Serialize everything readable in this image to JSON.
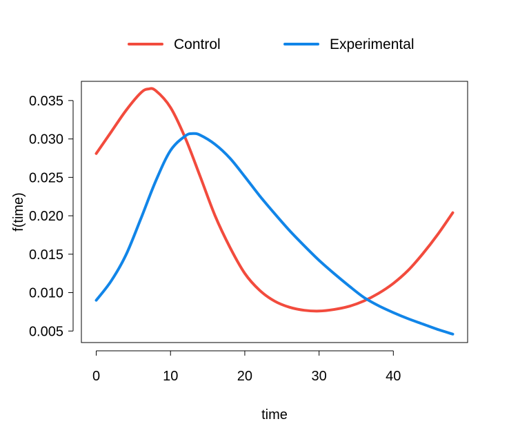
{
  "chart_data": {
    "type": "line",
    "title": "",
    "xlabel": "time",
    "ylabel": "f(time)",
    "xlim": [
      -2,
      50
    ],
    "ylim": [
      0.0035,
      0.0375
    ],
    "xticks": [
      0,
      10,
      20,
      30,
      40
    ],
    "yticks": [
      0.005,
      0.01,
      0.015,
      0.02,
      0.025,
      0.03,
      0.035
    ],
    "ytick_labels": [
      "0.005",
      "0.010",
      "0.015",
      "0.020",
      "0.025",
      "0.030",
      "0.035"
    ],
    "grid": false,
    "legend_position": "top-center",
    "series": [
      {
        "name": "Control",
        "color": "#F24B3D",
        "x": [
          0,
          2,
          4,
          6,
          7,
          8,
          10,
          12,
          14,
          16,
          18,
          20,
          22,
          24,
          26,
          28,
          30,
          32,
          34,
          36,
          38,
          40,
          42,
          44,
          46,
          48
        ],
        "y": [
          0.0281,
          0.0309,
          0.0337,
          0.036,
          0.0365,
          0.0363,
          0.0341,
          0.0301,
          0.0251,
          0.02,
          0.0159,
          0.0125,
          0.0103,
          0.0089,
          0.0081,
          0.0077,
          0.0076,
          0.0078,
          0.0082,
          0.0089,
          0.0099,
          0.0112,
          0.0129,
          0.0151,
          0.0176,
          0.0204
        ]
      },
      {
        "name": "Experimental",
        "color": "#1185E8",
        "x": [
          0,
          2,
          4,
          6,
          8,
          10,
          12,
          13,
          14,
          16,
          18,
          20,
          22,
          24,
          26,
          28,
          30,
          32,
          34,
          36,
          38,
          40,
          42,
          44,
          46,
          48
        ],
        "y": [
          0.009,
          0.0115,
          0.0149,
          0.0196,
          0.0245,
          0.0285,
          0.0304,
          0.0307,
          0.0305,
          0.0293,
          0.0275,
          0.0251,
          0.0226,
          0.0203,
          0.0181,
          0.0161,
          0.0142,
          0.0125,
          0.0109,
          0.0094,
          0.0083,
          0.0074,
          0.0066,
          0.0059,
          0.0052,
          0.0046
        ]
      }
    ]
  }
}
